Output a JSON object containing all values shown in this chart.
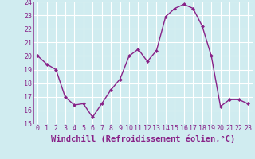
{
  "x": [
    0,
    1,
    2,
    3,
    4,
    5,
    6,
    7,
    8,
    9,
    10,
    11,
    12,
    13,
    14,
    15,
    16,
    17,
    18,
    19,
    20,
    21,
    22,
    23
  ],
  "y": [
    20.0,
    19.4,
    19.0,
    17.0,
    16.4,
    16.5,
    15.5,
    16.5,
    17.5,
    18.3,
    20.0,
    20.5,
    19.6,
    20.4,
    22.9,
    23.5,
    23.8,
    23.5,
    22.2,
    20.0,
    16.3,
    16.8,
    16.8,
    16.5
  ],
  "line_color": "#882288",
  "marker": "D",
  "marker_size": 2,
  "bg_color": "#d0ecf0",
  "grid_color": "#ffffff",
  "xlabel": "Windchill (Refroidissement éolien,°C)",
  "xlabel_color": "#882288",
  "tick_color": "#882288",
  "ylim": [
    15,
    24
  ],
  "xlim_min": -0.5,
  "xlim_max": 23.5,
  "yticks": [
    15,
    16,
    17,
    18,
    19,
    20,
    21,
    22,
    23,
    24
  ],
  "xticks": [
    0,
    1,
    2,
    3,
    4,
    5,
    6,
    7,
    8,
    9,
    10,
    11,
    12,
    13,
    14,
    15,
    16,
    17,
    18,
    19,
    20,
    21,
    22,
    23
  ],
  "font_size_ticks": 6,
  "font_size_xlabel": 7.5,
  "line_width": 1.0
}
